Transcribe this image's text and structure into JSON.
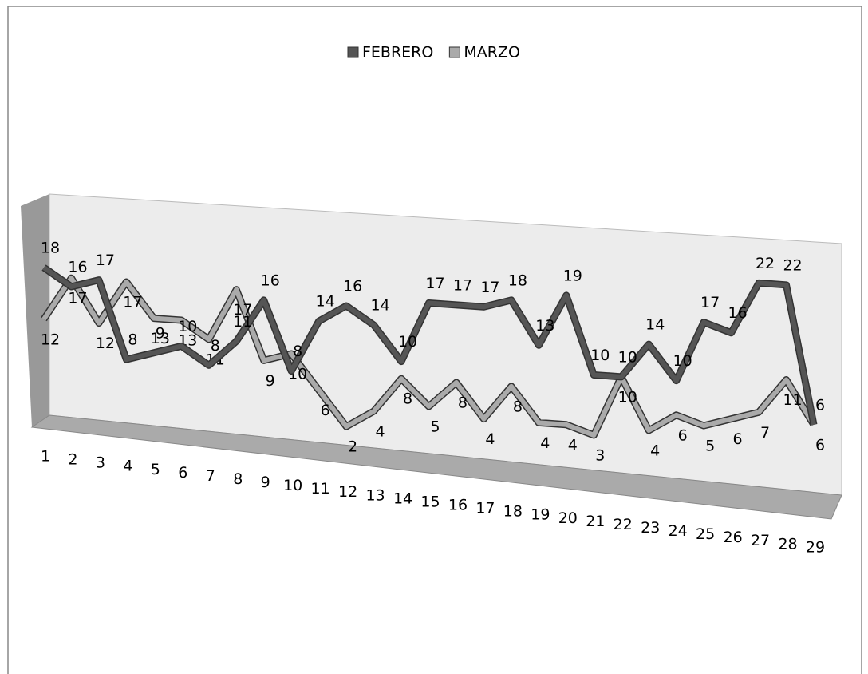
{
  "chart_data": {
    "type": "line",
    "categories": [
      "1",
      "2",
      "3",
      "4",
      "5",
      "6",
      "7",
      "8",
      "9",
      "10",
      "11",
      "12",
      "13",
      "14",
      "15",
      "16",
      "17",
      "18",
      "19",
      "20",
      "21",
      "22",
      "23",
      "24",
      "25",
      "26",
      "27",
      "28",
      "29"
    ],
    "series": [
      {
        "name": "FEBRERO",
        "color": "#555555",
        "values": [
          18,
          16,
          17,
          8,
          9,
          10,
          8,
          11,
          16,
          8,
          14,
          16,
          14,
          10,
          17,
          17,
          17,
          18,
          13,
          19,
          10,
          10,
          14,
          10,
          17,
          16,
          22,
          22,
          6
        ]
      },
      {
        "name": "MARZO",
        "color": "#aaaaaa",
        "values": [
          12,
          17,
          12,
          17,
          13,
          13,
          11,
          17,
          9,
          10,
          6,
          2,
          4,
          8,
          5,
          8,
          4,
          8,
          4,
          4,
          3,
          10,
          4,
          6,
          5,
          6,
          7,
          11,
          6
        ]
      }
    ],
    "ylim": [
      0,
      25
    ],
    "legend": "top"
  }
}
